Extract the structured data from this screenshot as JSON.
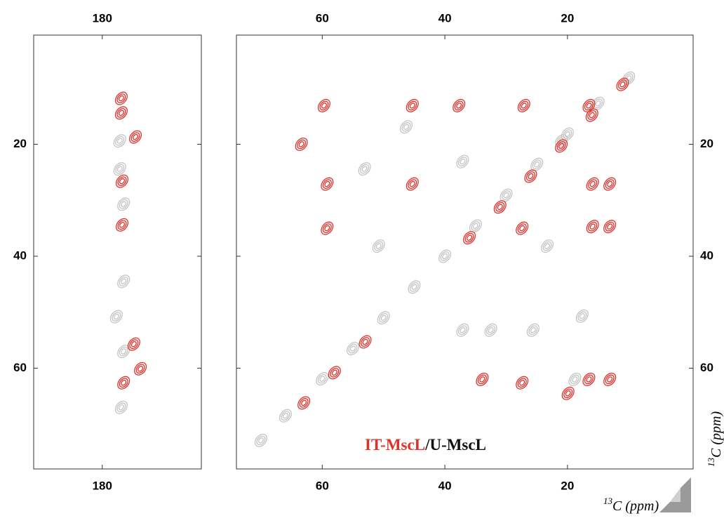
{
  "chart_data": [
    {
      "type": "scatter",
      "xlim": [
        198,
        154
      ],
      "ylim": [
        0.5,
        78
      ],
      "xticks": [
        180
      ],
      "yticks": [
        20,
        40,
        60
      ],
      "ytick_side": "left",
      "series": [
        {
          "color": "#c4c4c4",
          "x": [
            175.4,
            175.4,
            174.4,
            174.4,
            176.3,
            174.4,
            175
          ],
          "values": [
            19.4,
            24.4,
            30.7,
            44.5,
            50.8,
            57,
            67
          ]
        },
        {
          "color": "#e0302a",
          "x": [
            175,
            175,
            171.3,
            174.8,
            174.8,
            174.4,
            171.7,
            170
          ],
          "values": [
            11.8,
            14.4,
            18.7,
            26.6,
            34.4,
            62.6,
            55.7,
            60.1
          ]
        }
      ]
    },
    {
      "type": "scatter",
      "xlim": [
        74,
        -0.5
      ],
      "ylim": [
        0.5,
        78
      ],
      "xticks": [
        60,
        40,
        20
      ],
      "yticks": [
        20,
        40,
        60
      ],
      "ytick_side": "right",
      "series": [
        {
          "name": "U-MscL",
          "color": "#c4c4c4",
          "x": [
            70,
            66,
            60,
            55,
            50,
            45,
            40,
            35,
            30,
            25,
            20,
            15,
            10,
            53.1,
            46.3,
            37.1,
            50.8,
            21,
            23.3,
            17.6,
            37.1,
            25.6,
            18.8,
            32.5
          ],
          "values": [
            72.9,
            68.5,
            61.9,
            56.5,
            51,
            45.5,
            40,
            34.6,
            29.1,
            23.6,
            18.2,
            12.7,
            8.2,
            24.4,
            16.9,
            23.1,
            38.2,
            19.4,
            38.2,
            50.7,
            53.2,
            53.2,
            62,
            53.2
          ]
        },
        {
          "name": "IT-MscL",
          "color": "#e0302a",
          "x": [
            59.7,
            63.4,
            59.2,
            59.2,
            45.3,
            45.3,
            37.7,
            27.1,
            27.4,
            16.5,
            15.9,
            15.9,
            13.1,
            13.1,
            16.5,
            13.1,
            19.9,
            33.9,
            27.4,
            63,
            58,
            53,
            36,
            31,
            26,
            21,
            16,
            11
          ],
          "values": [
            13.1,
            20,
            27.1,
            35,
            13.1,
            27.1,
            13.1,
            13.1,
            35,
            13.1,
            27.1,
            34.7,
            27.1,
            34.7,
            62,
            62,
            64.5,
            62,
            62.6,
            66.2,
            60.8,
            55.3,
            36.7,
            31.2,
            25.7,
            20.3,
            14.8,
            9.3
          ]
        }
      ],
      "legend_separator": "/",
      "xlabel": {
        "isotope": "13",
        "text": "C (ppm)"
      },
      "ylabel": {
        "isotope": "13",
        "text": "C (ppm)"
      }
    }
  ]
}
